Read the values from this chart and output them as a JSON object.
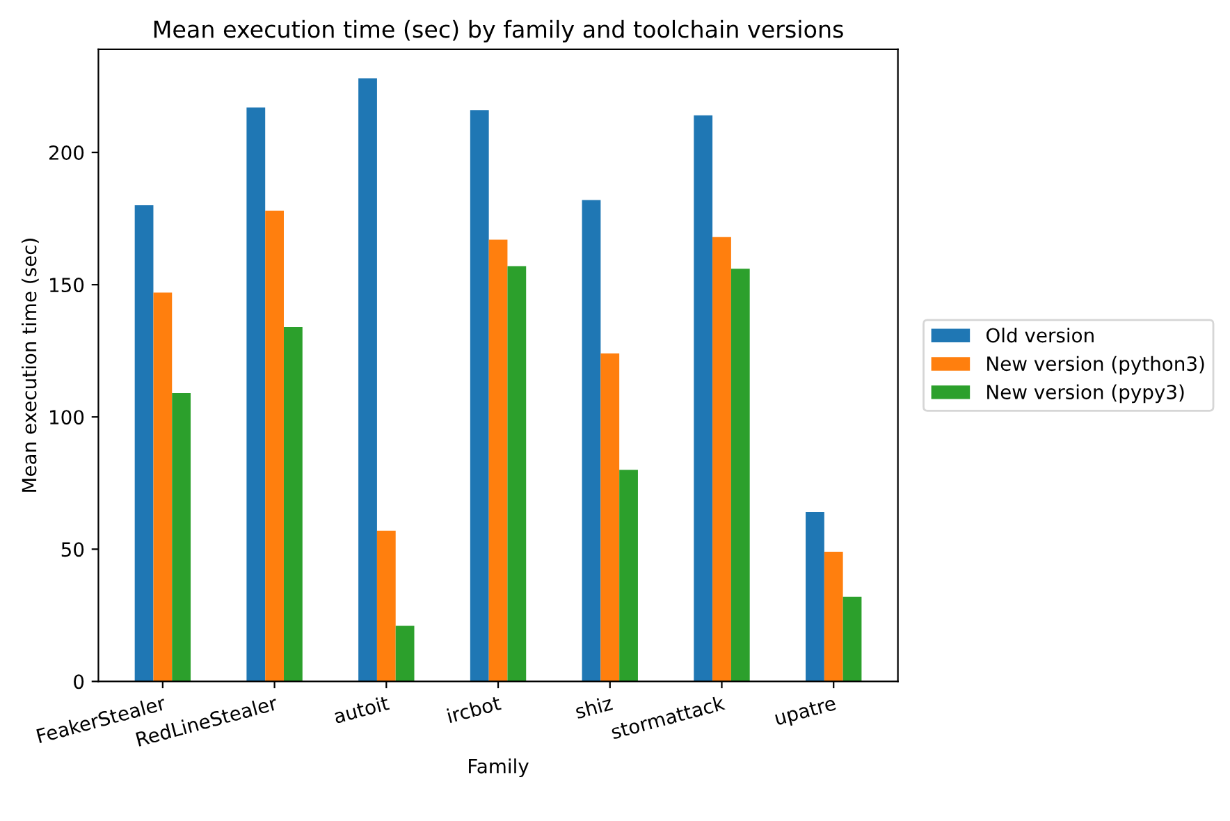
{
  "chart_data": {
    "type": "bar",
    "title": "Mean execution time (sec) by family and toolchain versions",
    "xlabel": "Family",
    "ylabel": "Mean execution time (sec)",
    "categories": [
      "FeakerStealer",
      "RedLineStealer",
      "autoit",
      "ircbot",
      "shiz",
      "stormattack",
      "upatre"
    ],
    "series": [
      {
        "name": "Old version",
        "color": "#1f77b4",
        "values": [
          180,
          217,
          228,
          216,
          182,
          214,
          64
        ]
      },
      {
        "name": "New version (python3)",
        "color": "#ff7f0e",
        "values": [
          147,
          178,
          57,
          167,
          124,
          168,
          49
        ]
      },
      {
        "name": "New version (pypy3)",
        "color": "#2ca02c",
        "values": [
          109,
          134,
          21,
          157,
          80,
          156,
          32
        ]
      }
    ],
    "ylim": [
      0,
      239
    ],
    "yticks": [
      0,
      50,
      100,
      150,
      200
    ],
    "grid": false,
    "legend": "right"
  }
}
